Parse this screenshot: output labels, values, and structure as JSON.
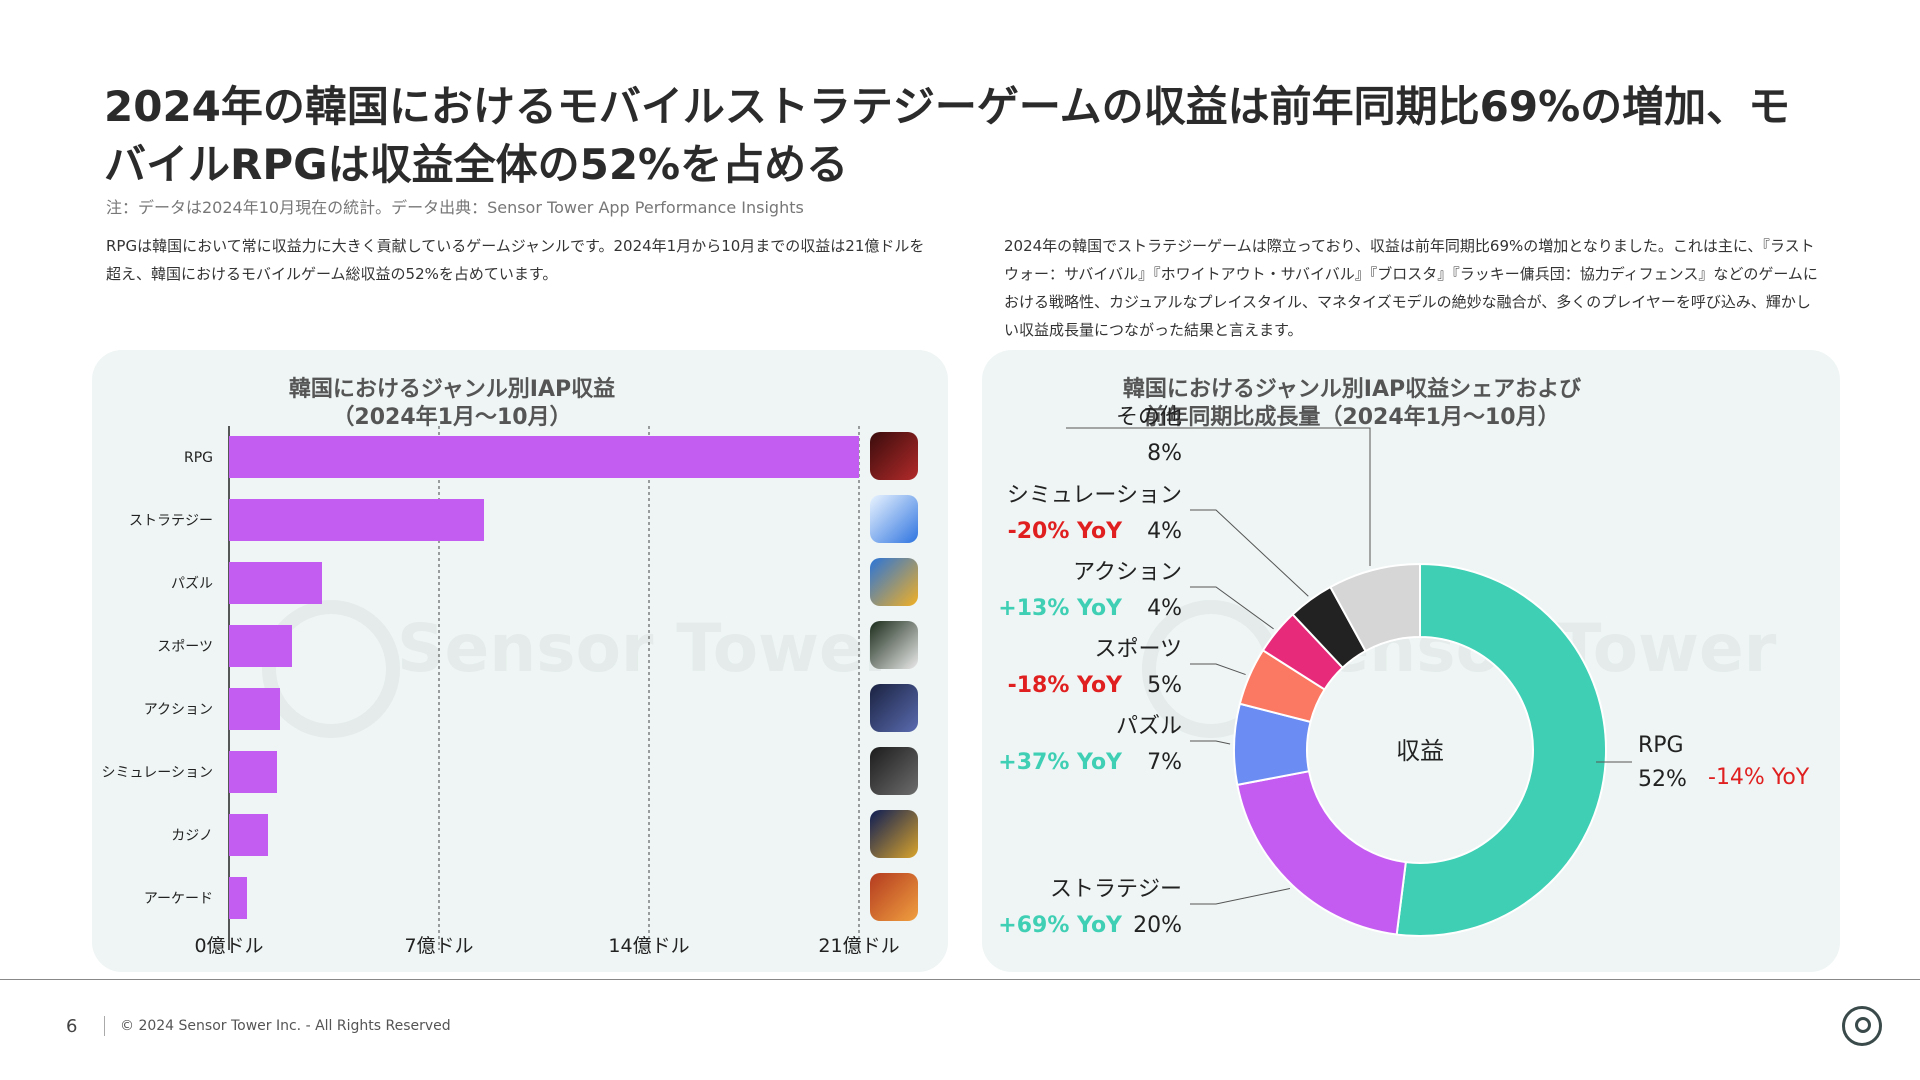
{
  "title": "2024年の韓国におけるモバイルストラテジーゲームの収益は前年同期比69%の増加、モバイルRPGは収益全体の52%を占める",
  "note": "注：データは2024年10月現在の統計。データ出典：Sensor Tower App Performance Insights",
  "desc_left": "RPGは韓国において常に収益力に大きく貢献しているゲームジャンルです。2024年1月から10月までの収益は21億ドルを超え、韓国におけるモバイルゲーム総収益の52%を占めています。",
  "desc_right": "2024年の韓国でストラテジーゲームは際立っており、収益は前年同期比69%の増加となりました。これは主に、『ラストウォー：サバイバル』『ホワイトアウト・サバイバル』『ブロスタ』『ラッキー傭兵団：協力ディフェンス』などのゲームにおける戦略性、カジュアルなプレイスタイル、マネタイズモデルの絶妙な融合が、多くのプレイヤーを呼び込み、輝かしい収益成長量につながった結果と言えます。",
  "watermark": "Sensor Tower",
  "footer": {
    "page": "6",
    "copyright": "© 2024 Sensor Tower Inc. - All Rights Reserved"
  },
  "colors": {
    "bar": "#c35cf0",
    "positive": "#3ecfb4",
    "negative": "#e02020",
    "panel": "#eef5f4"
  },
  "chart_data": [
    {
      "type": "bar",
      "orientation": "horizontal",
      "title": "韓国におけるジャンル別IAP収益\n（2024年1月〜10月）",
      "categories": [
        "RPG",
        "ストラテジー",
        "パズル",
        "スポーツ",
        "アクション",
        "シミュレーション",
        "カジノ",
        "アーケード"
      ],
      "values": [
        21.0,
        8.5,
        3.1,
        2.1,
        1.7,
        1.6,
        1.3,
        0.6
      ],
      "unit": "億ドル",
      "xlim": [
        0,
        21
      ],
      "xticks": [
        0,
        7,
        14,
        21
      ],
      "xtick_labels": [
        "0億ドル",
        "7億ドル",
        "14億ドル",
        "21億ドル"
      ],
      "grid": true,
      "app_icons": [
        "game-icon-red",
        "game-icon-blue",
        "game-icon-hero",
        "game-icon-soccer",
        "game-icon-netmarble",
        "game-icon-roblox",
        "game-icon-poker",
        "game-icon-cookie"
      ]
    },
    {
      "type": "pie",
      "variant": "donut",
      "title": "韓国におけるジャンル別IAP収益シェアおよび\n前年同期比成長量（2024年1月〜10月）",
      "center_label": "収益",
      "slices": [
        {
          "label": "RPG",
          "value": 52,
          "pct": "52%",
          "yoy": "-14% YoY",
          "color": "#3ecfb4"
        },
        {
          "label": "ストラテジー",
          "value": 20,
          "pct": "20%",
          "yoy": "+69% YoY",
          "color": "#c55cf2"
        },
        {
          "label": "パズル",
          "value": 7,
          "pct": "7%",
          "yoy": "+37% YoY",
          "color": "#6b8cf2"
        },
        {
          "label": "スポーツ",
          "value": 5,
          "pct": "5%",
          "yoy": "-18% YoY",
          "color": "#fb7862"
        },
        {
          "label": "アクション",
          "value": 4,
          "pct": "4%",
          "yoy": "+13% YoY",
          "color": "#e82a7b"
        },
        {
          "label": "シミュレーション",
          "value": 4,
          "pct": "4%",
          "yoy": "-20% YoY",
          "color": "#222222"
        },
        {
          "label": "その他",
          "value": 8,
          "pct": "8%",
          "yoy": "",
          "color": "#d6d6d6"
        }
      ]
    }
  ]
}
